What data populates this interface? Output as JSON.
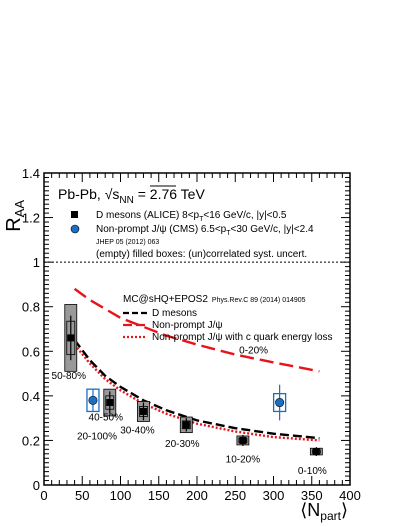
{
  "chart_data": {
    "type": "scatter",
    "system_label": "Pb-Pb, √s",
    "system_sub": "NN",
    "system_energy": " = 2.76 TeV",
    "xlabel_main": "⟨N",
    "xlabel_sub": "part",
    "xlabel_end": "⟩",
    "ylabel_main": "R",
    "ylabel_sub": "AA",
    "xlim": [
      0,
      400
    ],
    "ylim": [
      0,
      1.4
    ],
    "x_ticks": [
      "0",
      "50",
      "100",
      "150",
      "200",
      "250",
      "300",
      "350",
      "400"
    ],
    "y_ticks": [
      "0",
      "0.2",
      "0.4",
      "0.6",
      "0.8",
      "1",
      "1.2",
      "1.4"
    ],
    "reference_line": 1.0,
    "legend": {
      "d_mesons": "D mesons (ALICE) 8<p",
      "d_mesons_sub": "T",
      "d_mesons_end": "<16 GeV/c, |y|<0.5",
      "jpsi": "Non-prompt J/ψ (CMS) 6.5<p",
      "jpsi_sub": "T",
      "jpsi_end": "<30 GeV/c, |y|<2.4",
      "jpsi_ref": "JHEP 05 (2012) 063",
      "boxes_note": "(empty) filled boxes: (un)correlated syst. uncert."
    },
    "model_legend": {
      "title": "MC@sHQ+EPOS2",
      "ref": "Phys.Rev.C 89 (2014) 014905",
      "d_mesons": "D mesons",
      "jpsi": "Non-prompt J/ψ",
      "jpsi_eloss": "Non-prompt J/ψ with c quark energy loss"
    },
    "colors": {
      "d_mesons": "#000000",
      "jpsi": "#1a6fc4",
      "model_d": "#000000",
      "model_jpsi": "#e8141b",
      "model_jpsi_eloss": "#e8141b",
      "syst_box": "#999999",
      "jpsi_label": "#1a6fc4"
    },
    "series": [
      {
        "name": "D mesons (ALICE)",
        "points": [
          {
            "x": 356,
            "y": 0.15,
            "err": 0.02,
            "syst": 0.015,
            "label": "0-10%"
          },
          {
            "x": 260,
            "y": 0.2,
            "err": 0.025,
            "syst": 0.02,
            "label": "10-20%"
          },
          {
            "x": 186,
            "y": 0.27,
            "err": 0.03,
            "syst": 0.035,
            "label": "20-30%"
          },
          {
            "x": 130,
            "y": 0.33,
            "err": 0.04,
            "syst": 0.045,
            "label": "30-40%"
          },
          {
            "x": 86,
            "y": 0.37,
            "err": 0.05,
            "syst": 0.06,
            "label": "40-50%"
          },
          {
            "x": 35,
            "y": 0.66,
            "err": 0.1,
            "syst": 0.15,
            "label": "50-80%"
          }
        ]
      },
      {
        "name": "Non-prompt J/ψ (CMS)",
        "points": [
          {
            "x": 308,
            "y": 0.37,
            "err": 0.08,
            "syst": 0.04,
            "label": "0-20%"
          },
          {
            "x": 64,
            "y": 0.38,
            "err": 0.05,
            "syst": 0.05,
            "label": "20-100%"
          }
        ]
      }
    ],
    "model_curves": [
      {
        "name": "D mesons",
        "style": "dashed",
        "x": [
          40,
          60,
          80,
          100,
          130,
          160,
          200,
          250,
          300,
          360
        ],
        "y": [
          0.65,
          0.56,
          0.49,
          0.44,
          0.38,
          0.335,
          0.29,
          0.255,
          0.23,
          0.21
        ]
      },
      {
        "name": "Non-prompt J/ψ",
        "style": "long-dashed",
        "x": [
          40,
          60,
          80,
          100,
          130,
          160,
          200,
          250,
          300,
          360
        ],
        "y": [
          0.88,
          0.83,
          0.79,
          0.75,
          0.71,
          0.67,
          0.63,
          0.585,
          0.55,
          0.51
        ]
      },
      {
        "name": "Non-prompt J/ψ with c quark energy loss",
        "style": "dotted",
        "x": [
          40,
          60,
          80,
          100,
          130,
          160,
          200,
          250,
          300,
          360
        ],
        "y": [
          0.63,
          0.545,
          0.475,
          0.425,
          0.365,
          0.32,
          0.275,
          0.24,
          0.215,
          0.2
        ]
      }
    ]
  }
}
